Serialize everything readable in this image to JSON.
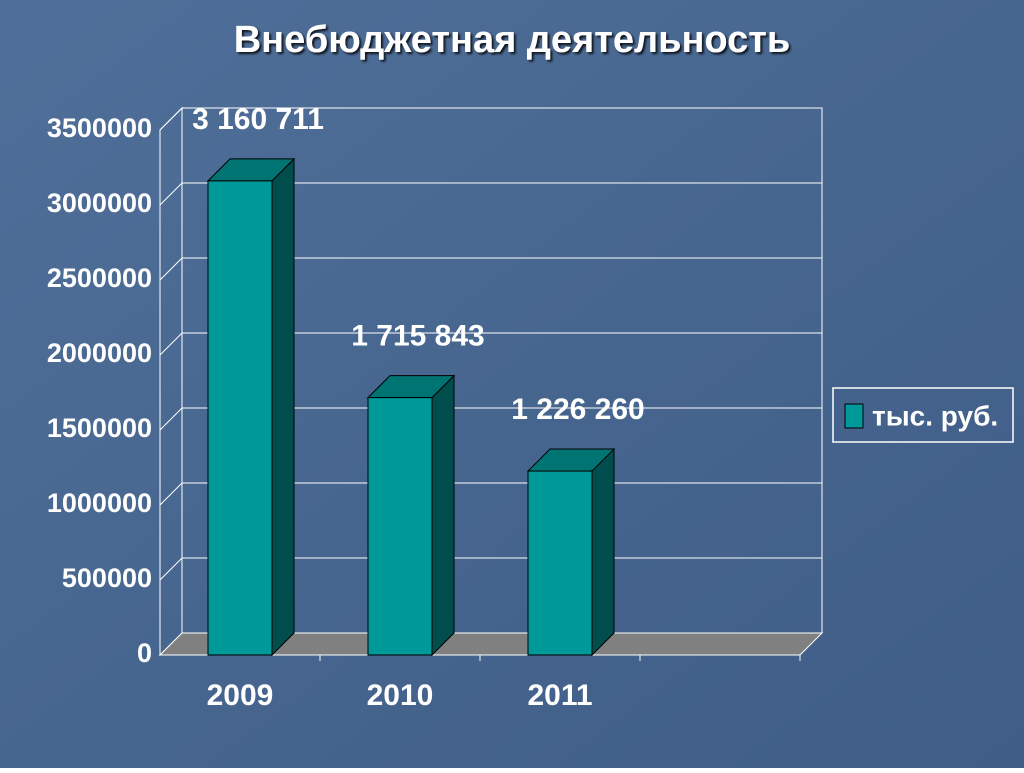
{
  "chart_data": {
    "type": "bar3d",
    "title": "Внебюджетная деятельность",
    "categories": [
      "2009",
      "2010",
      "2011",
      null
    ],
    "series": [
      {
        "name": "тыс. руб.",
        "color": "#009999",
        "values": [
          3160711,
          1715843,
          1226260,
          null
        ],
        "value_labels": [
          "3 160 711",
          "1 715 843",
          "1 226 260",
          null
        ]
      }
    ],
    "ylim": [
      0,
      3500000
    ],
    "yticks": [
      0,
      500000,
      1000000,
      1500000,
      2000000,
      2500000,
      3000000,
      3500000
    ],
    "grid": true,
    "legend": "right"
  }
}
